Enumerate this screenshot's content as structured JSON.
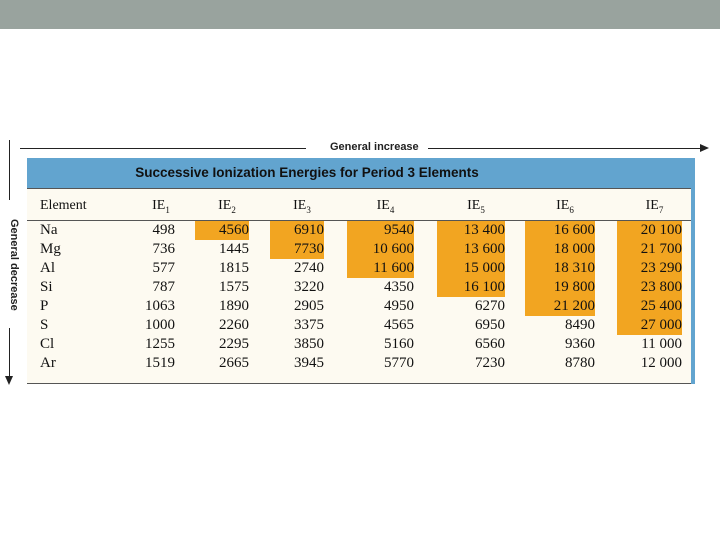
{
  "arrows": {
    "horizontal_label": "General increase",
    "vertical_label": "General decrease"
  },
  "table": {
    "title": "Successive Ionization Energies for Period 3 Elements",
    "header_element": "Element",
    "headers": [
      {
        "base": "IE",
        "sub": "1"
      },
      {
        "base": "IE",
        "sub": "2"
      },
      {
        "base": "IE",
        "sub": "3"
      },
      {
        "base": "IE",
        "sub": "4"
      },
      {
        "base": "IE",
        "sub": "5"
      },
      {
        "base": "IE",
        "sub": "6"
      },
      {
        "base": "IE",
        "sub": "7"
      }
    ],
    "rows": [
      {
        "element": "Na",
        "values": [
          "498",
          "4560",
          "6910",
          "9540",
          "13 400",
          "16 600",
          "20 100"
        ]
      },
      {
        "element": "Mg",
        "values": [
          "736",
          "1445",
          "7730",
          "10 600",
          "13 600",
          "18 000",
          "21 700"
        ]
      },
      {
        "element": "Al",
        "values": [
          "577",
          "1815",
          "2740",
          "11 600",
          "15 000",
          "18 310",
          "23 290"
        ]
      },
      {
        "element": "Si",
        "values": [
          "787",
          "1575",
          "3220",
          "4350",
          "16 100",
          "19 800",
          "23 800"
        ]
      },
      {
        "element": "P",
        "values": [
          "1063",
          "1890",
          "2905",
          "4950",
          "6270",
          "21 200",
          "25 400"
        ]
      },
      {
        "element": "S",
        "values": [
          "1000",
          "2260",
          "3375",
          "4565",
          "6950",
          "8490",
          "27 000"
        ]
      },
      {
        "element": "Cl",
        "values": [
          "1255",
          "2295",
          "3850",
          "5160",
          "6560",
          "9360",
          "11 000"
        ]
      },
      {
        "element": "Ar",
        "values": [
          "1519",
          "2665",
          "3945",
          "5770",
          "7230",
          "8780",
          "12 000"
        ]
      }
    ],
    "highlight_color": "#f2a521",
    "title_bar_color": "#62a4cf"
  }
}
